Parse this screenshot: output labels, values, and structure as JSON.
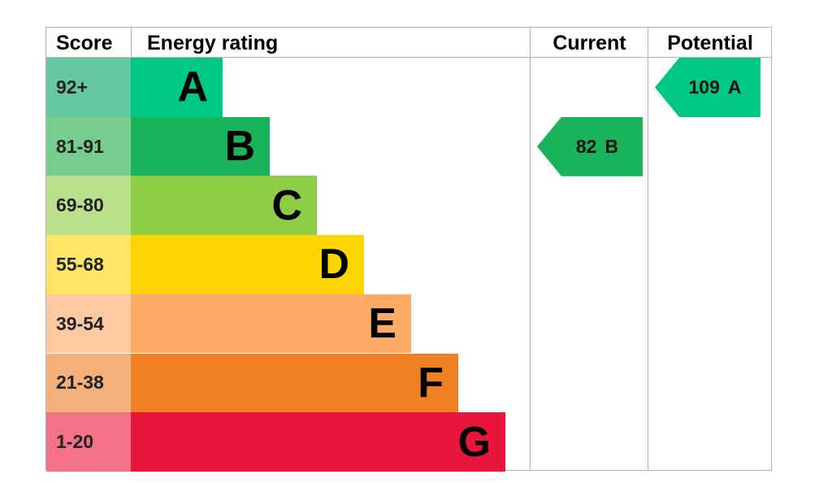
{
  "headers": {
    "score": "Score",
    "energy_rating": "Energy rating",
    "current": "Current",
    "potential": "Potential"
  },
  "chart_data": {
    "type": "bar",
    "bands": [
      {
        "letter": "A",
        "range": "92+",
        "color": "#00c781",
        "score_color": "#64c8a0"
      },
      {
        "letter": "B",
        "range": "81-91",
        "color": "#19b459",
        "score_color": "#78cc8e"
      },
      {
        "letter": "C",
        "range": "69-80",
        "color": "#8dce46",
        "score_color": "#bbe08b"
      },
      {
        "letter": "D",
        "range": "55-68",
        "color": "#ffd500",
        "score_color": "#ffe566"
      },
      {
        "letter": "E",
        "range": "39-54",
        "color": "#fcaa65",
        "score_color": "#fdc9a0"
      },
      {
        "letter": "F",
        "range": "21-38",
        "color": "#ef8023",
        "score_color": "#f4b07a"
      },
      {
        "letter": "G",
        "range": "1-20",
        "color": "#e9153b",
        "score_color": "#f37288"
      }
    ],
    "current": {
      "value": "82",
      "letter": "B",
      "color": "#19b459"
    },
    "potential": {
      "value": "109",
      "letter": "A",
      "color": "#00c781"
    }
  }
}
